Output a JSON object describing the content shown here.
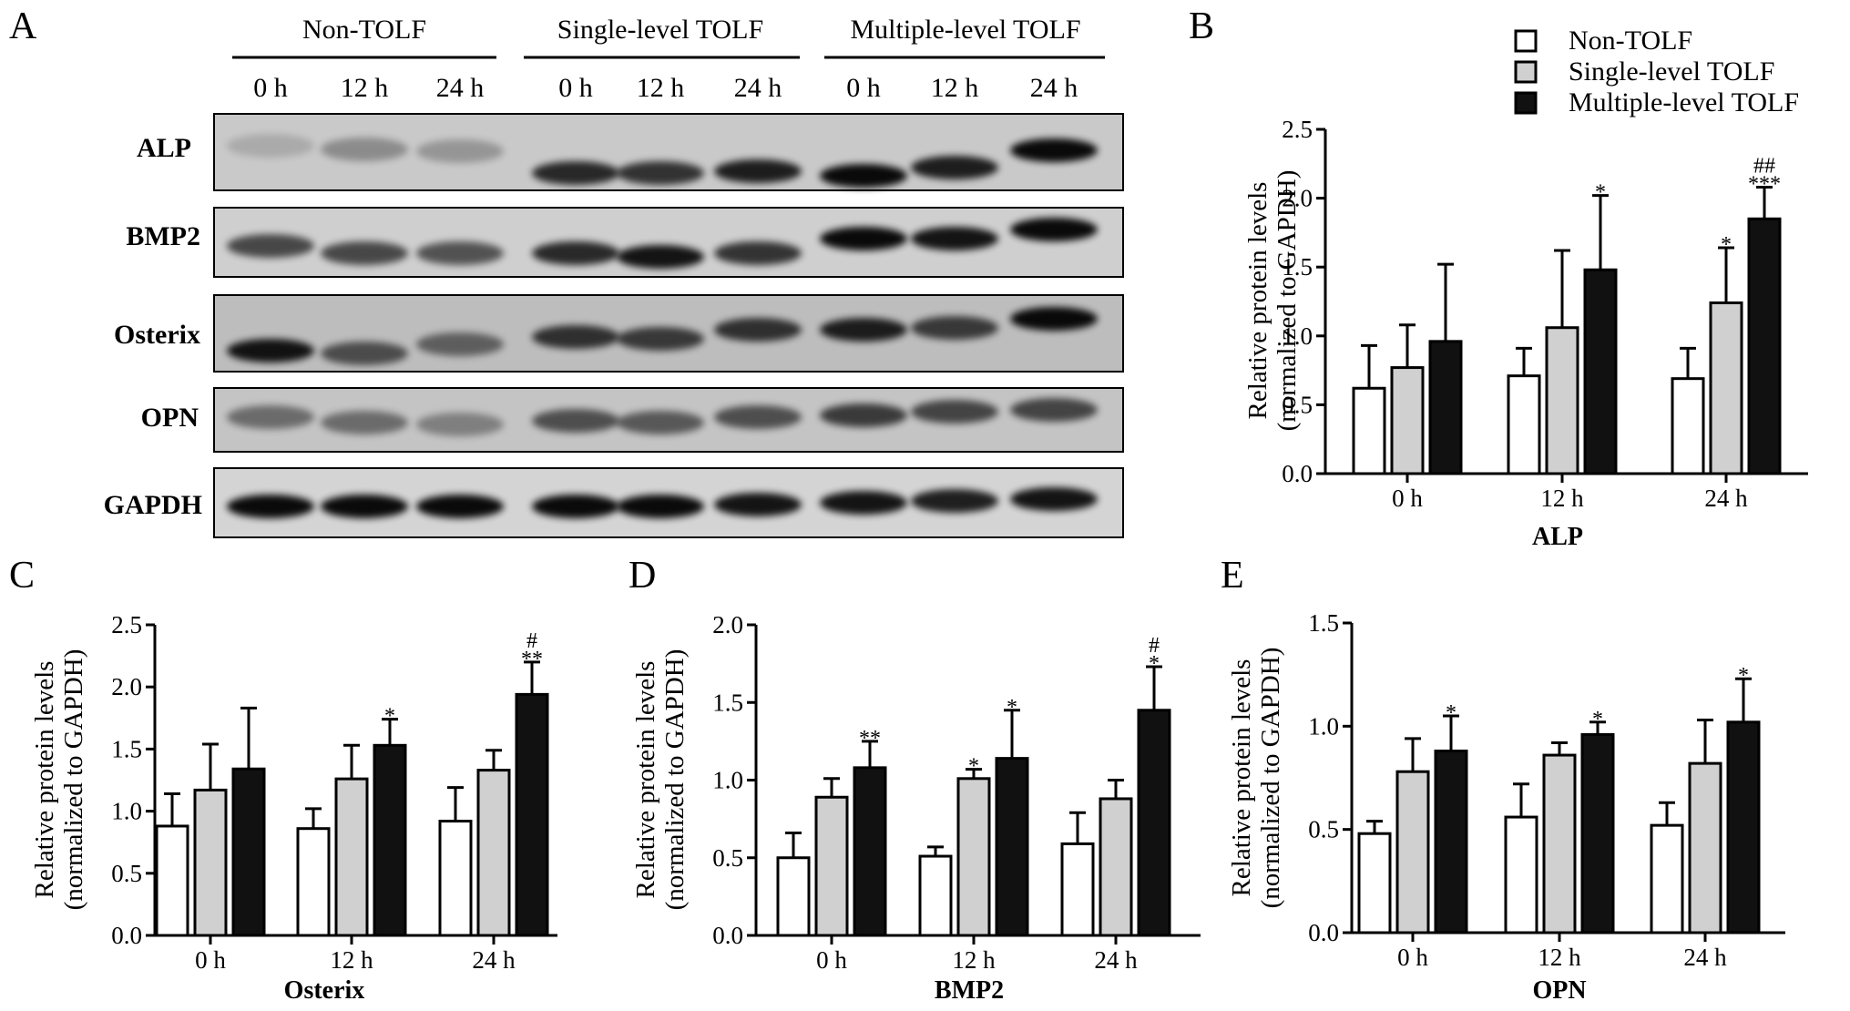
{
  "panel_letters": [
    "A",
    "B",
    "C",
    "D",
    "E"
  ],
  "blot": {
    "groups": [
      "Non-TOLF",
      "Single-level TOLF",
      "Multiple-level TOLF"
    ],
    "timepoints": [
      "0 h",
      "12 h",
      "24 h"
    ],
    "proteins": [
      "ALP",
      "BMP2",
      "Osterix",
      "OPN",
      "GAPDH"
    ]
  },
  "legend": [
    "Non-TOLF",
    "Single-level TOLF",
    "Multiple-level TOLF"
  ],
  "colors": {
    "non_tolf": "#ffffff",
    "single_level": "#d0d0d0",
    "multiple_level": "#111111",
    "axis": "#000000"
  },
  "chart_data": [
    {
      "panel": "B",
      "type": "bar",
      "xlabel": "ALP",
      "ylabel": "Relative protein levels (normalized to GAPDH)",
      "ylim": [
        0,
        2.5
      ],
      "yticks": [
        "0.0",
        "0.5",
        "1.0",
        "1.5",
        "2.0",
        "2.5"
      ],
      "categories": [
        "0 h",
        "12 h",
        "24 h"
      ],
      "series": [
        {
          "name": "Non-TOLF",
          "values": [
            0.62,
            0.71,
            0.69
          ],
          "errors": [
            0.31,
            0.2,
            0.22
          ]
        },
        {
          "name": "Single-level TOLF",
          "values": [
            0.77,
            1.06,
            1.24
          ],
          "errors": [
            0.31,
            0.56,
            0.4
          ]
        },
        {
          "name": "Multiple-level TOLF",
          "values": [
            0.96,
            1.48,
            1.85
          ],
          "errors": [
            0.56,
            0.54,
            0.23
          ]
        }
      ],
      "annotations": [
        {
          "category": 1,
          "series": 2,
          "text": [
            "*"
          ]
        },
        {
          "category": 2,
          "series": 1,
          "text": [
            "*"
          ]
        },
        {
          "category": 2,
          "series": 2,
          "text": [
            "##",
            "***"
          ]
        }
      ]
    },
    {
      "panel": "C",
      "type": "bar",
      "xlabel": "Osterix",
      "ylabel": "Relative protein levels (normalized to GAPDH)",
      "ylim": [
        0,
        2.5
      ],
      "yticks": [
        "0.0",
        "0.5",
        "1.0",
        "1.5",
        "2.0",
        "2.5"
      ],
      "categories": [
        "0 h",
        "12 h",
        "24 h"
      ],
      "series": [
        {
          "name": "Non-TOLF",
          "values": [
            0.88,
            0.86,
            0.92
          ],
          "errors": [
            0.26,
            0.16,
            0.27
          ]
        },
        {
          "name": "Single-level TOLF",
          "values": [
            1.17,
            1.26,
            1.33
          ],
          "errors": [
            0.37,
            0.27,
            0.16
          ]
        },
        {
          "name": "Multiple-level TOLF",
          "values": [
            1.34,
            1.53,
            1.94
          ],
          "errors": [
            0.49,
            0.21,
            0.26
          ]
        }
      ],
      "annotations": [
        {
          "category": 1,
          "series": 2,
          "text": [
            "*"
          ]
        },
        {
          "category": 2,
          "series": 2,
          "text": [
            "#",
            "**"
          ]
        }
      ]
    },
    {
      "panel": "D",
      "type": "bar",
      "xlabel": "BMP2",
      "ylabel": "Relative protein levels (normalized to GAPDH)",
      "ylim": [
        0,
        2.0
      ],
      "yticks": [
        "0.0",
        "0.5",
        "1.0",
        "1.5",
        "2.0"
      ],
      "categories": [
        "0 h",
        "12 h",
        "24 h"
      ],
      "series": [
        {
          "name": "Non-TOLF",
          "values": [
            0.5,
            0.51,
            0.59
          ],
          "errors": [
            0.16,
            0.06,
            0.2
          ]
        },
        {
          "name": "Single-level TOLF",
          "values": [
            0.89,
            1.01,
            0.88
          ],
          "errors": [
            0.12,
            0.06,
            0.12
          ]
        },
        {
          "name": "Multiple-level TOLF",
          "values": [
            1.08,
            1.14,
            1.45
          ],
          "errors": [
            0.17,
            0.31,
            0.28
          ]
        }
      ],
      "annotations": [
        {
          "category": 0,
          "series": 2,
          "text": [
            "**"
          ]
        },
        {
          "category": 1,
          "series": 1,
          "text": [
            "*"
          ]
        },
        {
          "category": 1,
          "series": 2,
          "text": [
            "*"
          ]
        },
        {
          "category": 2,
          "series": 2,
          "text": [
            "#",
            "*"
          ]
        }
      ]
    },
    {
      "panel": "E",
      "type": "bar",
      "xlabel": "OPN",
      "ylabel": "Relative protein levels (normalized to GAPDH)",
      "ylim": [
        0,
        1.5
      ],
      "yticks": [
        "0.0",
        "0.5",
        "1.0",
        "1.5"
      ],
      "categories": [
        "0 h",
        "12 h",
        "24 h"
      ],
      "series": [
        {
          "name": "Non-TOLF",
          "values": [
            0.48,
            0.56,
            0.52
          ],
          "errors": [
            0.06,
            0.16,
            0.11
          ]
        },
        {
          "name": "Single-level TOLF",
          "values": [
            0.78,
            0.86,
            0.82
          ],
          "errors": [
            0.16,
            0.06,
            0.21
          ]
        },
        {
          "name": "Multiple-level TOLF",
          "values": [
            0.88,
            0.96,
            1.02
          ],
          "errors": [
            0.17,
            0.06,
            0.21
          ]
        }
      ],
      "annotations": [
        {
          "category": 0,
          "series": 2,
          "text": [
            "*"
          ]
        },
        {
          "category": 1,
          "series": 2,
          "text": [
            "*"
          ]
        },
        {
          "category": 2,
          "series": 2,
          "text": [
            "*"
          ]
        }
      ]
    }
  ]
}
